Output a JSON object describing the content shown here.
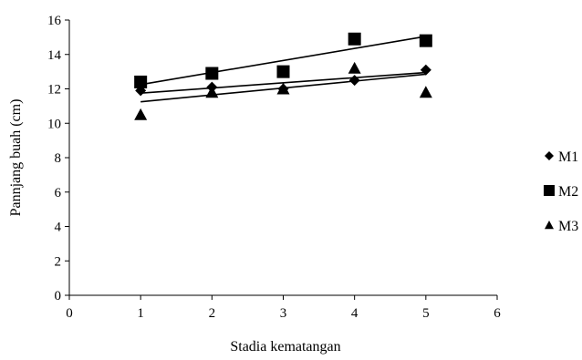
{
  "chart_data": {
    "type": "scatter",
    "xlabel": "Stadia kematangan",
    "ylabel": "Pannjang buah (cm)",
    "xlim": [
      0,
      6
    ],
    "ylim": [
      0,
      16
    ],
    "x_ticks": [
      0,
      1,
      2,
      3,
      4,
      5,
      6
    ],
    "y_ticks": [
      0,
      2,
      4,
      6,
      8,
      10,
      12,
      14,
      16
    ],
    "grid": false,
    "legend_position": "right",
    "series": [
      {
        "name": "M1",
        "marker": "diamond",
        "color": "#000000",
        "x": [
          1,
          2,
          3,
          4,
          5
        ],
        "values": [
          11.9,
          12.1,
          12.0,
          12.5,
          13.1
        ],
        "trendline": [
          11.75,
          12.95
        ]
      },
      {
        "name": "M2",
        "marker": "square",
        "color": "#000000",
        "x": [
          1,
          2,
          3,
          4,
          5
        ],
        "values": [
          12.4,
          12.9,
          13.0,
          14.9,
          14.8
        ],
        "trendline": [
          12.25,
          15.05
        ]
      },
      {
        "name": "M3",
        "marker": "triangle",
        "color": "#000000",
        "x": [
          1,
          2,
          3,
          4,
          5
        ],
        "values": [
          10.5,
          11.8,
          12.0,
          13.2,
          11.8
        ],
        "trendline": [
          11.25,
          12.85
        ]
      }
    ]
  }
}
